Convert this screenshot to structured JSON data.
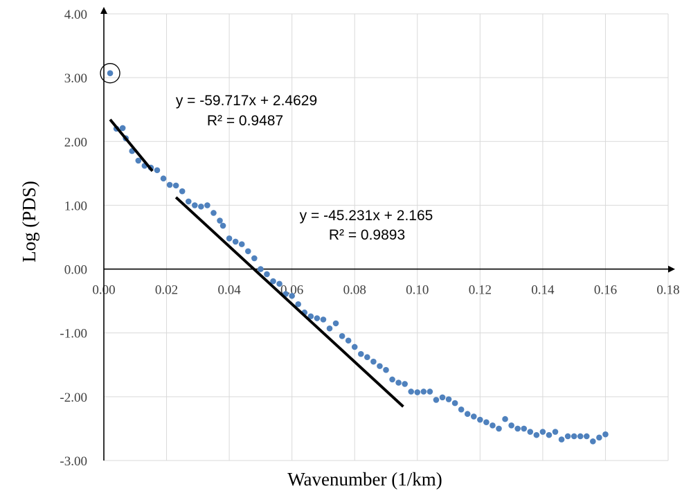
{
  "chart_data": {
    "type": "scatter",
    "xlabel": "Wavenumber (1/km)",
    "ylabel": "Log (PDS)",
    "xlim": [
      0,
      0.18
    ],
    "ylim": [
      -3,
      4
    ],
    "x_ticks": [
      "0.00",
      "0.02",
      "0.04",
      "0.06",
      "0.08",
      "0.10",
      "0.12",
      "0.14",
      "0.16",
      "0.18"
    ],
    "y_ticks": [
      "4.00",
      "3.00",
      "2.00",
      "1.00",
      "0.00",
      "-1.00",
      "-2.00",
      "-3.00"
    ],
    "grid": true,
    "marker_color": "#4f81bd",
    "series": [
      {
        "x": [
          0.002,
          0.004,
          0.006,
          0.007,
          0.009,
          0.011,
          0.013,
          0.015,
          0.017,
          0.019,
          0.021,
          0.023,
          0.025,
          0.027,
          0.029,
          0.031,
          0.033,
          0.035,
          0.037,
          0.038,
          0.04,
          0.042,
          0.044,
          0.046,
          0.048,
          0.05,
          0.052,
          0.054,
          0.056,
          0.058,
          0.06,
          0.062,
          0.064,
          0.066,
          0.068,
          0.07,
          0.072,
          0.074,
          0.076,
          0.078,
          0.08,
          0.082,
          0.084,
          0.086,
          0.088,
          0.09,
          0.092,
          0.094,
          0.096,
          0.098,
          0.1,
          0.102,
          0.104,
          0.106,
          0.108,
          0.11,
          0.112,
          0.114,
          0.116,
          0.118,
          0.12,
          0.122,
          0.124,
          0.126,
          0.128,
          0.13,
          0.132,
          0.134,
          0.136,
          0.138,
          0.14,
          0.142,
          0.144,
          0.146,
          0.148,
          0.15,
          0.152,
          0.154,
          0.156,
          0.158,
          0.16
        ],
        "y": [
          3.07,
          2.2,
          2.21,
          2.05,
          1.85,
          1.7,
          1.62,
          1.59,
          1.55,
          1.42,
          1.32,
          1.31,
          1.22,
          1.06,
          1.0,
          0.98,
          1.0,
          0.88,
          0.76,
          0.68,
          0.48,
          0.43,
          0.39,
          0.28,
          0.17,
          0.0,
          -0.08,
          -0.19,
          -0.23,
          -0.39,
          -0.42,
          -0.55,
          -0.68,
          -0.74,
          -0.77,
          -0.79,
          -0.93,
          -0.85,
          -1.05,
          -1.12,
          -1.22,
          -1.33,
          -1.38,
          -1.45,
          -1.52,
          -1.58,
          -1.73,
          -1.78,
          -1.8,
          -1.92,
          -1.93,
          -1.92,
          -1.92,
          -2.05,
          -2.01,
          -2.04,
          -2.1,
          -2.2,
          -2.27,
          -2.31,
          -2.36,
          -2.4,
          -2.45,
          -2.5,
          -2.35,
          -2.45,
          -2.5,
          -2.5,
          -2.55,
          -2.6,
          -2.55,
          -2.6,
          -2.55,
          -2.67,
          -2.62,
          -2.62,
          -2.62,
          -2.62,
          -2.7,
          -2.64,
          -2.59
        ]
      }
    ],
    "trendlines": [
      {
        "x_range": [
          0.002,
          0.0155
        ],
        "slope": -59.717,
        "intercept": 2.4629,
        "equation": "y = -59.717x + 2.4629",
        "r2": "R² = 0.9487"
      },
      {
        "x_range": [
          0.023,
          0.0955
        ],
        "slope": -45.231,
        "intercept": 2.165,
        "equation": "y = -45.231x + 2.165",
        "r2": "R² = 0.9893"
      }
    ],
    "highlighted_point": {
      "x": 0.002,
      "y": 3.07
    }
  }
}
